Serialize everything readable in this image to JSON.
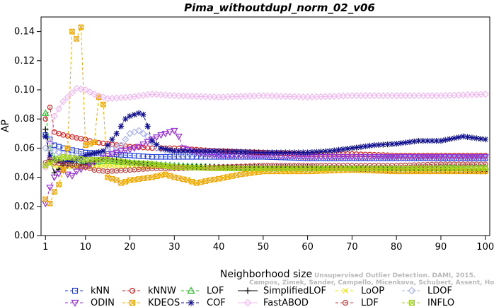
{
  "chart_data": {
    "type": "line",
    "title": "Pima_withoutdupl_norm_02_v06",
    "xlabel": "Neighborhood size",
    "ylabel": "AP",
    "xlim": [
      0,
      101
    ],
    "ylim": [
      0,
      0.15
    ],
    "x_ticks": [
      1,
      10,
      20,
      30,
      40,
      50,
      60,
      70,
      80,
      90,
      100
    ],
    "y_ticks": [
      0.0,
      0.02,
      0.04,
      0.06,
      0.08,
      0.1,
      0.12,
      0.14
    ],
    "y_tick_labels": [
      "0.00",
      "0.02",
      "0.04",
      "0.06",
      "0.08",
      "0.10",
      "0.12",
      "0.14"
    ],
    "watermark": [
      "Unsupervised Outlier Detection. DAMI, 2015.",
      "Campos, Zimek, Sander, Campello, Micenkova, Schubert, Assent, Houle"
    ],
    "series": [
      {
        "name": "kNN",
        "color": "#1f3fdd",
        "marker": "square",
        "dash": "4,3",
        "points": [
          [
            1,
            0.069
          ],
          [
            2,
            0.066
          ],
          [
            3,
            0.062
          ],
          [
            5,
            0.06
          ],
          [
            8,
            0.058
          ],
          [
            10,
            0.057
          ],
          [
            15,
            0.056
          ],
          [
            20,
            0.055
          ],
          [
            25,
            0.054
          ],
          [
            30,
            0.054
          ],
          [
            40,
            0.054
          ],
          [
            50,
            0.054
          ],
          [
            60,
            0.053
          ],
          [
            70,
            0.053
          ],
          [
            80,
            0.053
          ],
          [
            90,
            0.053
          ],
          [
            100,
            0.053
          ]
        ]
      },
      {
        "name": "kNNW",
        "color": "#d62020",
        "marker": "circle",
        "dash": "4,3",
        "points": [
          [
            1,
            0.08
          ],
          [
            2,
            0.088
          ],
          [
            3,
            0.071
          ],
          [
            5,
            0.069
          ],
          [
            8,
            0.067
          ],
          [
            10,
            0.066
          ],
          [
            12,
            0.064
          ],
          [
            15,
            0.063
          ],
          [
            20,
            0.061
          ],
          [
            25,
            0.06
          ],
          [
            30,
            0.06
          ],
          [
            40,
            0.058
          ],
          [
            50,
            0.057
          ],
          [
            60,
            0.056
          ],
          [
            70,
            0.056
          ],
          [
            80,
            0.055
          ],
          [
            90,
            0.055
          ],
          [
            100,
            0.055
          ]
        ]
      },
      {
        "name": "LOF",
        "color": "#22c022",
        "marker": "triangle",
        "dash": "4,3",
        "points": [
          [
            1,
            0.084
          ],
          [
            2,
            0.06
          ],
          [
            3,
            0.053
          ],
          [
            5,
            0.05
          ],
          [
            8,
            0.049
          ],
          [
            10,
            0.05
          ],
          [
            15,
            0.051
          ],
          [
            20,
            0.05
          ],
          [
            25,
            0.049
          ],
          [
            30,
            0.048
          ],
          [
            40,
            0.047
          ],
          [
            50,
            0.046
          ],
          [
            60,
            0.046
          ],
          [
            70,
            0.046
          ],
          [
            80,
            0.046
          ],
          [
            90,
            0.047
          ],
          [
            100,
            0.047
          ]
        ]
      },
      {
        "name": "SimplifiedLOF",
        "color": "#000000",
        "marker": "plus",
        "dash": "",
        "points": [
          [
            1,
            0.073
          ],
          [
            2,
            0.052
          ],
          [
            3,
            0.043
          ],
          [
            5,
            0.048
          ],
          [
            8,
            0.048
          ],
          [
            10,
            0.049
          ],
          [
            12,
            0.051
          ],
          [
            15,
            0.053
          ],
          [
            20,
            0.05
          ],
          [
            25,
            0.048
          ],
          [
            30,
            0.047
          ],
          [
            40,
            0.047
          ],
          [
            50,
            0.047
          ],
          [
            60,
            0.047
          ],
          [
            70,
            0.046
          ],
          [
            80,
            0.045
          ],
          [
            90,
            0.045
          ],
          [
            100,
            0.044
          ]
        ]
      },
      {
        "name": "LoOP",
        "color": "#e6e600",
        "marker": "cross",
        "dash": "4,3",
        "points": [
          [
            1,
            0.047
          ],
          [
            2,
            0.049
          ],
          [
            3,
            0.048
          ],
          [
            5,
            0.047
          ],
          [
            10,
            0.047
          ],
          [
            15,
            0.048
          ],
          [
            20,
            0.047
          ],
          [
            30,
            0.047
          ],
          [
            40,
            0.046
          ],
          [
            50,
            0.046
          ],
          [
            60,
            0.046
          ],
          [
            70,
            0.046
          ],
          [
            80,
            0.046
          ],
          [
            90,
            0.046
          ],
          [
            100,
            0.046
          ]
        ]
      },
      {
        "name": "LDOF",
        "color": "#aab4ee",
        "marker": "diamond",
        "dash": "4,3",
        "points": [
          [
            1,
            0.06
          ],
          [
            3,
            0.058
          ],
          [
            5,
            0.056
          ],
          [
            8,
            0.055
          ],
          [
            10,
            0.055
          ],
          [
            15,
            0.058
          ],
          [
            18,
            0.062
          ],
          [
            20,
            0.07
          ],
          [
            22,
            0.072
          ],
          [
            24,
            0.068
          ],
          [
            26,
            0.06
          ],
          [
            30,
            0.057
          ],
          [
            40,
            0.056
          ],
          [
            50,
            0.055
          ],
          [
            60,
            0.054
          ],
          [
            70,
            0.054
          ],
          [
            80,
            0.054
          ],
          [
            90,
            0.054
          ],
          [
            100,
            0.054
          ]
        ]
      },
      {
        "name": "ODIN",
        "color": "#9a2fd8",
        "marker": "invtriangle",
        "dash": "4,3",
        "points": [
          [
            1,
            0.022
          ],
          [
            2,
            0.033
          ],
          [
            3,
            0.04
          ],
          [
            5,
            0.045
          ],
          [
            6,
            0.042
          ],
          [
            7,
            0.041
          ],
          [
            8,
            0.044
          ],
          [
            10,
            0.047
          ],
          [
            13,
            0.052
          ],
          [
            16,
            0.056
          ],
          [
            18,
            0.058
          ],
          [
            20,
            0.059
          ],
          [
            22,
            0.061
          ],
          [
            25,
            0.066
          ],
          [
            27,
            0.069
          ],
          [
            28,
            0.07
          ],
          [
            29,
            0.071
          ],
          [
            30,
            0.072
          ],
          [
            31,
            0.068
          ],
          [
            32,
            0.06
          ],
          [
            35,
            0.057
          ],
          [
            40,
            0.055
          ],
          [
            50,
            0.055
          ],
          [
            60,
            0.054
          ],
          [
            70,
            0.054
          ],
          [
            80,
            0.054
          ],
          [
            90,
            0.054
          ],
          [
            100,
            0.054
          ]
        ]
      },
      {
        "name": "KDEOS",
        "color": "#f0a800",
        "marker": "squarecross",
        "dash": "4,3",
        "points": [
          [
            1,
            0.025
          ],
          [
            2,
            0.022
          ],
          [
            3,
            0.03
          ],
          [
            4,
            0.035
          ],
          [
            5,
            0.045
          ],
          [
            6,
            0.06
          ],
          [
            7,
            0.14
          ],
          [
            8,
            0.135
          ],
          [
            9,
            0.143
          ],
          [
            10,
            0.062
          ],
          [
            11,
            0.063
          ],
          [
            12,
            0.064
          ],
          [
            13,
            0.095
          ],
          [
            14,
            0.09
          ],
          [
            15,
            0.04
          ],
          [
            17,
            0.038
          ],
          [
            18,
            0.036
          ],
          [
            20,
            0.038
          ],
          [
            25,
            0.04
          ],
          [
            28,
            0.042
          ],
          [
            30,
            0.04
          ],
          [
            33,
            0.038
          ],
          [
            35,
            0.036
          ],
          [
            38,
            0.038
          ],
          [
            40,
            0.039
          ],
          [
            45,
            0.042
          ],
          [
            50,
            0.044
          ],
          [
            55,
            0.044
          ],
          [
            60,
            0.044
          ],
          [
            70,
            0.045
          ],
          [
            80,
            0.044
          ],
          [
            90,
            0.044
          ],
          [
            100,
            0.044
          ]
        ]
      },
      {
        "name": "COF",
        "color": "#101090",
        "marker": "asterisk",
        "dash": "4,3",
        "points": [
          [
            1,
            0.068
          ],
          [
            2,
            0.055
          ],
          [
            3,
            0.052
          ],
          [
            5,
            0.05
          ],
          [
            8,
            0.052
          ],
          [
            10,
            0.055
          ],
          [
            14,
            0.058
          ],
          [
            17,
            0.07
          ],
          [
            19,
            0.08
          ],
          [
            20,
            0.082
          ],
          [
            22,
            0.084
          ],
          [
            23,
            0.083
          ],
          [
            24,
            0.075
          ],
          [
            25,
            0.065
          ],
          [
            27,
            0.06
          ],
          [
            30,
            0.058
          ],
          [
            40,
            0.058
          ],
          [
            50,
            0.057
          ],
          [
            60,
            0.057
          ],
          [
            65,
            0.058
          ],
          [
            70,
            0.06
          ],
          [
            75,
            0.062
          ],
          [
            80,
            0.063
          ],
          [
            85,
            0.065
          ],
          [
            90,
            0.065
          ],
          [
            95,
            0.068
          ],
          [
            100,
            0.066
          ]
        ]
      },
      {
        "name": "FastABOD",
        "color": "#f0b8f0",
        "marker": "diamond",
        "dash": "",
        "points": [
          [
            1,
            0.047
          ],
          [
            3,
            0.082
          ],
          [
            5,
            0.092
          ],
          [
            8,
            0.101
          ],
          [
            10,
            0.1
          ],
          [
            12,
            0.097
          ],
          [
            15,
            0.094
          ],
          [
            20,
            0.095
          ],
          [
            25,
            0.097
          ],
          [
            30,
            0.096
          ],
          [
            40,
            0.095
          ],
          [
            50,
            0.096
          ],
          [
            60,
            0.095
          ],
          [
            70,
            0.096
          ],
          [
            80,
            0.096
          ],
          [
            90,
            0.096
          ],
          [
            100,
            0.097
          ]
        ]
      },
      {
        "name": "LDF",
        "color": "#c04040",
        "marker": "circledot",
        "dash": "4,3",
        "points": [
          [
            1,
            0.05
          ],
          [
            2,
            0.052
          ],
          [
            3,
            0.05
          ],
          [
            5,
            0.049
          ],
          [
            8,
            0.048
          ],
          [
            10,
            0.047
          ],
          [
            12,
            0.045
          ],
          [
            15,
            0.044
          ],
          [
            20,
            0.045
          ],
          [
            25,
            0.046
          ],
          [
            30,
            0.046
          ],
          [
            40,
            0.047
          ],
          [
            50,
            0.048
          ],
          [
            60,
            0.048
          ],
          [
            70,
            0.048
          ],
          [
            80,
            0.048
          ],
          [
            90,
            0.049
          ],
          [
            100,
            0.049
          ]
        ]
      },
      {
        "name": "INFLO",
        "color": "#a0d020",
        "marker": "squarecross",
        "dash": "4,3",
        "points": [
          [
            1,
            0.048
          ],
          [
            2,
            0.05
          ],
          [
            3,
            0.052
          ],
          [
            5,
            0.054
          ],
          [
            8,
            0.053
          ],
          [
            10,
            0.052
          ],
          [
            15,
            0.052
          ],
          [
            20,
            0.05
          ],
          [
            25,
            0.049
          ],
          [
            30,
            0.047
          ],
          [
            40,
            0.046
          ],
          [
            50,
            0.046
          ],
          [
            60,
            0.046
          ],
          [
            70,
            0.046
          ],
          [
            80,
            0.046
          ],
          [
            90,
            0.046
          ],
          [
            100,
            0.046
          ]
        ]
      }
    ],
    "legend": {
      "position": "bottom",
      "rows": [
        [
          "kNN",
          "kNNW",
          "LOF",
          "SimplifiedLOF",
          "LoOP",
          "LDOF"
        ],
        [
          "ODIN",
          "KDEOS",
          "COF",
          "FastABOD",
          "LDF",
          "INFLO"
        ]
      ]
    }
  }
}
